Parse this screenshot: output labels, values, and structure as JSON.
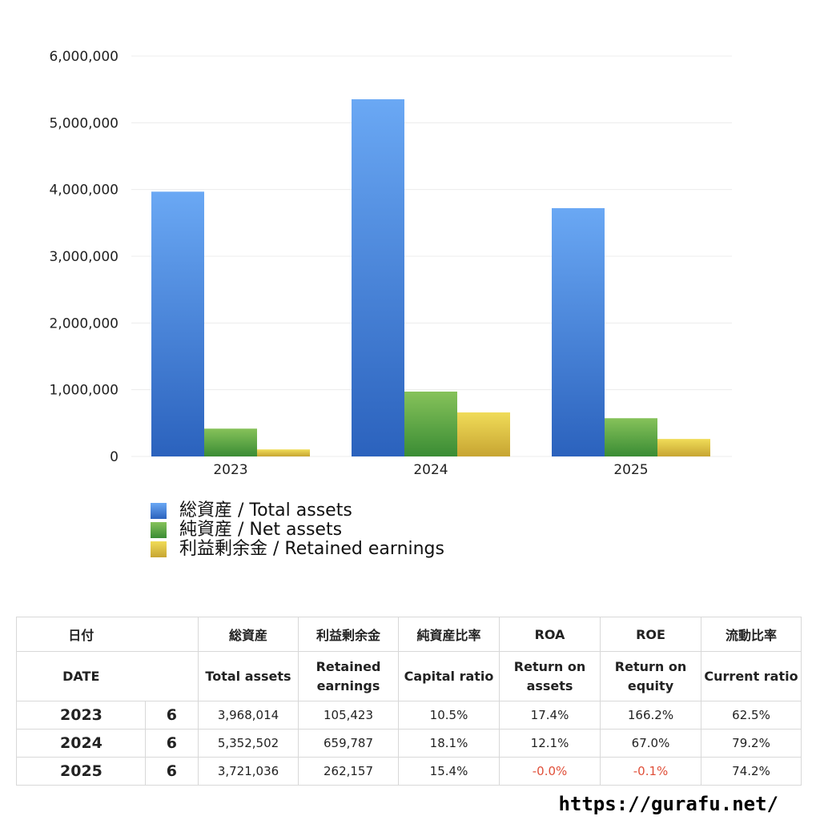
{
  "chart_data": {
    "type": "bar",
    "categories": [
      "2023",
      "2024",
      "2025"
    ],
    "series": [
      {
        "name": "総資産 / Total assets",
        "values": [
          3968014,
          5352502,
          3721036
        ],
        "color_top": "#6aa8f4",
        "color_bottom": "#2b62bd"
      },
      {
        "name": "純資産 / Net assets",
        "values": [
          417000,
          972000,
          573000
        ],
        "color_top": "#86c25a",
        "color_bottom": "#3a8c34"
      },
      {
        "name": "利益剰余金 / Retained earnings",
        "values": [
          105423,
          659787,
          262157
        ],
        "color_top": "#f0dc58",
        "color_bottom": "#c7a532"
      }
    ],
    "ylim": [
      0,
      6000000
    ],
    "yticks": [
      "0",
      "1,000,000",
      "2,000,000",
      "3,000,000",
      "4,000,000",
      "5,000,000",
      "6,000,000"
    ],
    "grid": true,
    "legend_position": "bottom-left"
  },
  "table": {
    "headers_jp": [
      "日付",
      "総資産",
      "利益剰余金",
      "純資産比率",
      "ROA",
      "ROE",
      "流動比率"
    ],
    "headers_en": [
      "DATE",
      "Total assets",
      "Retained earnings",
      "Capital ratio",
      "Return on assets",
      "Return on equity",
      "Current ratio"
    ],
    "rows": [
      {
        "year": "2023",
        "month": "6",
        "total_assets": "3,968,014",
        "retained": "105,423",
        "capital_ratio": "10.5%",
        "roa": "17.4%",
        "roe": "166.2%",
        "current_ratio": "62.5%"
      },
      {
        "year": "2024",
        "month": "6",
        "total_assets": "5,352,502",
        "retained": "659,787",
        "capital_ratio": "18.1%",
        "roa": "12.1%",
        "roe": "67.0%",
        "current_ratio": "79.2%"
      },
      {
        "year": "2025",
        "month": "6",
        "total_assets": "3,721,036",
        "retained": "262,157",
        "capital_ratio": "15.4%",
        "roa": "-0.0%",
        "roe": "-0.1%",
        "current_ratio": "74.2%"
      }
    ],
    "negative_color": "#e0503a"
  },
  "footer": {
    "url": "https://gurafu.net/"
  }
}
